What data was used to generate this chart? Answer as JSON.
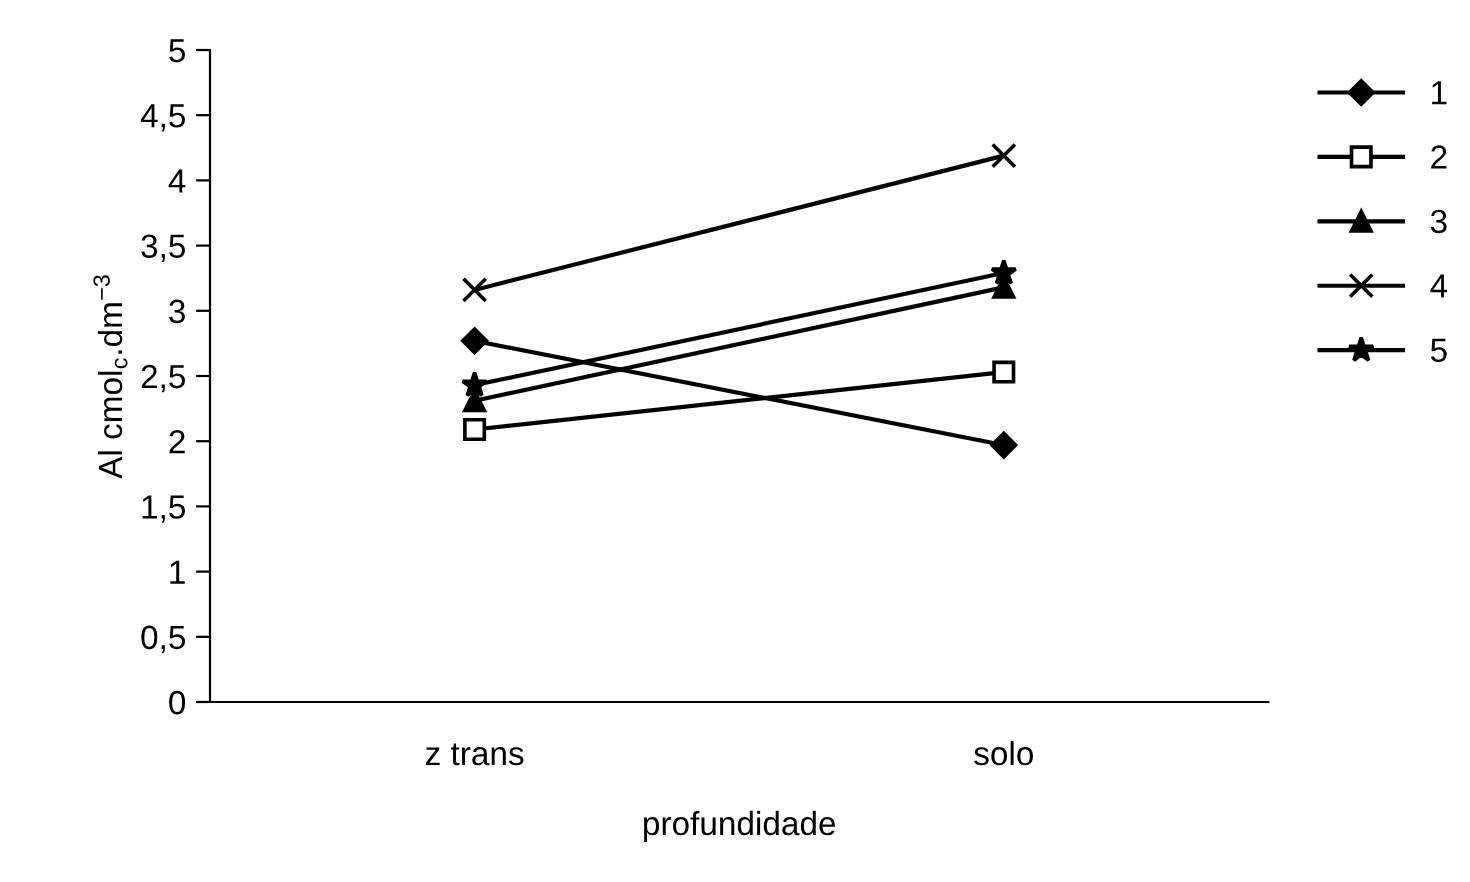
{
  "chart_data": {
    "type": "line",
    "xlabel": "profundidade",
    "ylabel": "Al cmol$_{c}$.dm$^{−3}$",
    "categories": [
      "z trans",
      "solo"
    ],
    "series": [
      {
        "name": "1",
        "color": "#000000",
        "marker": "diamond",
        "values": [
          2.77,
          1.97
        ]
      },
      {
        "name": "2",
        "color": "#000000",
        "marker": "square",
        "values": [
          2.09,
          2.53
        ]
      },
      {
        "name": "3",
        "color": "#000000",
        "marker": "triangle",
        "values": [
          2.31,
          3.18
        ]
      },
      {
        "name": "4",
        "color": "#000000",
        "marker": "cross",
        "values": [
          3.16,
          4.19
        ]
      },
      {
        "name": "5",
        "color": "#000000",
        "marker": "star",
        "values": [
          2.43,
          3.29
        ]
      }
    ],
    "ylim": [
      0,
      5
    ],
    "yticks": [
      0,
      {
        "value": 0.5,
        "label": "0,5"
      },
      1,
      {
        "value": 1.5,
        "label": "1,5"
      },
      2,
      {
        "value": 2.5,
        "label": "2,5"
      },
      3,
      {
        "value": 3.5,
        "label": "3,5"
      },
      4,
      {
        "value": 4.5,
        "label": "4,5"
      },
      5
    ],
    "grid": false,
    "legend": "right",
    "line_style": "solid"
  }
}
